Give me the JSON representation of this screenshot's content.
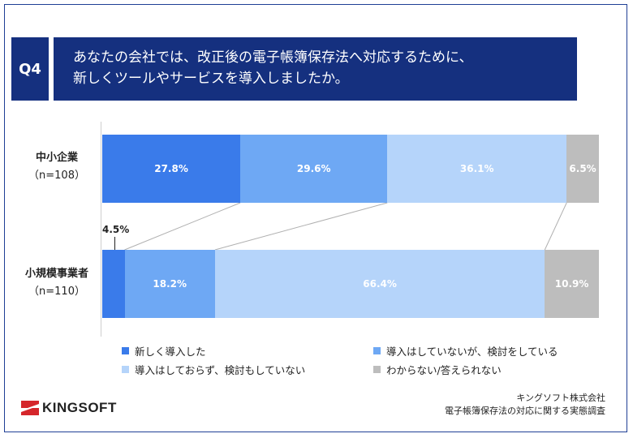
{
  "header": {
    "q_label": "Q4",
    "question_line1": "あなたの会社では、改正後の電子帳簿保存法へ対応するために、",
    "question_line2": "新しくツールやサービスを導入しましたか。"
  },
  "colors": {
    "frame": "#1f3f95",
    "header_bg": "#15307f",
    "series": [
      "#3a7bea",
      "#6ea8f4",
      "#b5d4fa",
      "#bdbdbd"
    ]
  },
  "chart_data": {
    "type": "bar",
    "orientation": "horizontal",
    "stacked": true,
    "percent": true,
    "categories": [
      {
        "name": "中小企業",
        "n": "（n=108）"
      },
      {
        "name": "小規模事業者",
        "n": "（n=110）"
      }
    ],
    "series": [
      {
        "name": "新しく導入した",
        "values": [
          27.8,
          4.5
        ],
        "labels": [
          "27.8%",
          "4.5%"
        ]
      },
      {
        "name": "導入はしていないが、検討をしている",
        "values": [
          29.6,
          18.2
        ],
        "labels": [
          "29.6%",
          "18.2%"
        ]
      },
      {
        "name": "導入はしておらず、検討もしていない",
        "values": [
          36.1,
          66.4
        ],
        "labels": [
          "36.1%",
          "66.4%"
        ]
      },
      {
        "name": "わからない/答えられない",
        "values": [
          6.5,
          10.9
        ],
        "labels": [
          "6.5%",
          "10.9%"
        ]
      }
    ],
    "xlim": [
      0,
      100
    ],
    "legend_position": "bottom",
    "grid": false
  },
  "footer": {
    "logo_text": "KINGSOFT",
    "source_line1": "キングソフト株式会社",
    "source_line2": "電子帳簿保存法の対応に関する実態調査"
  }
}
